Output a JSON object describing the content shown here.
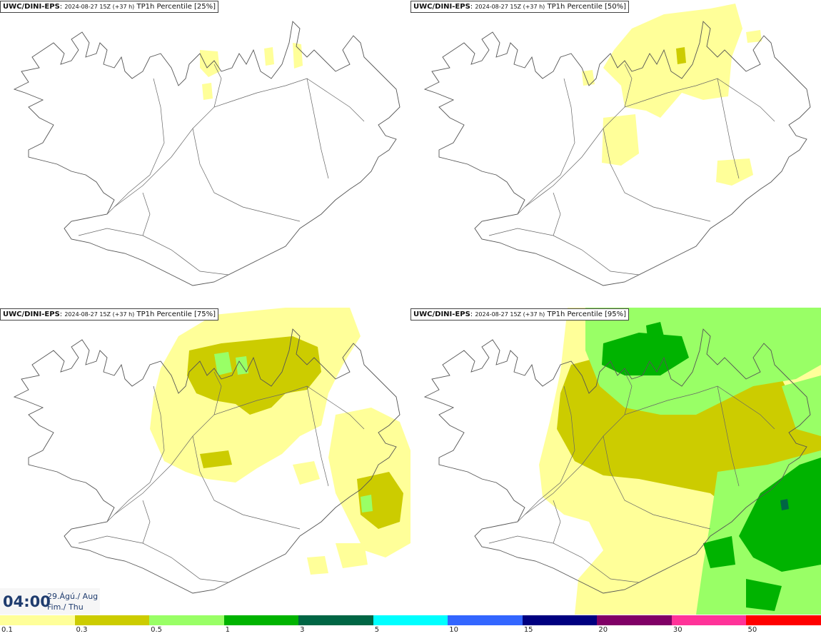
{
  "panels": [
    {
      "model": "UWC/DINI-EPS",
      "run": "2024-08-27 15Z (+37 h)",
      "field": "TP1h Percentile [25%]"
    },
    {
      "model": "UWC/DINI-EPS",
      "run": "2024-08-27 15Z (+37 h)",
      "field": "TP1h Percentile [50%]"
    },
    {
      "model": "UWC/DINI-EPS",
      "run": "2024-08-27 15Z (+37 h)",
      "field": "TP1h Percentile [75%]"
    },
    {
      "model": "UWC/DINI-EPS",
      "run": "2024-08-27 15Z (+37 h)",
      "field": "TP1h Percentile [95%]"
    }
  ],
  "time": {
    "hour": "04:00",
    "date": "29.Ágú./ Aug",
    "weekday": "Fim./ Thu"
  },
  "legend": {
    "colors": [
      "#ffff99",
      "#cccc00",
      "#99ff66",
      "#00b300",
      "#006644",
      "#00ffff",
      "#3366ff",
      "#000080",
      "#800066",
      "#ff3399",
      "#ff0000"
    ],
    "ticks": [
      "0.1",
      "0.3",
      "0.5",
      "1",
      "3",
      "5",
      "10",
      "15",
      "20",
      "30",
      "50"
    ]
  }
}
